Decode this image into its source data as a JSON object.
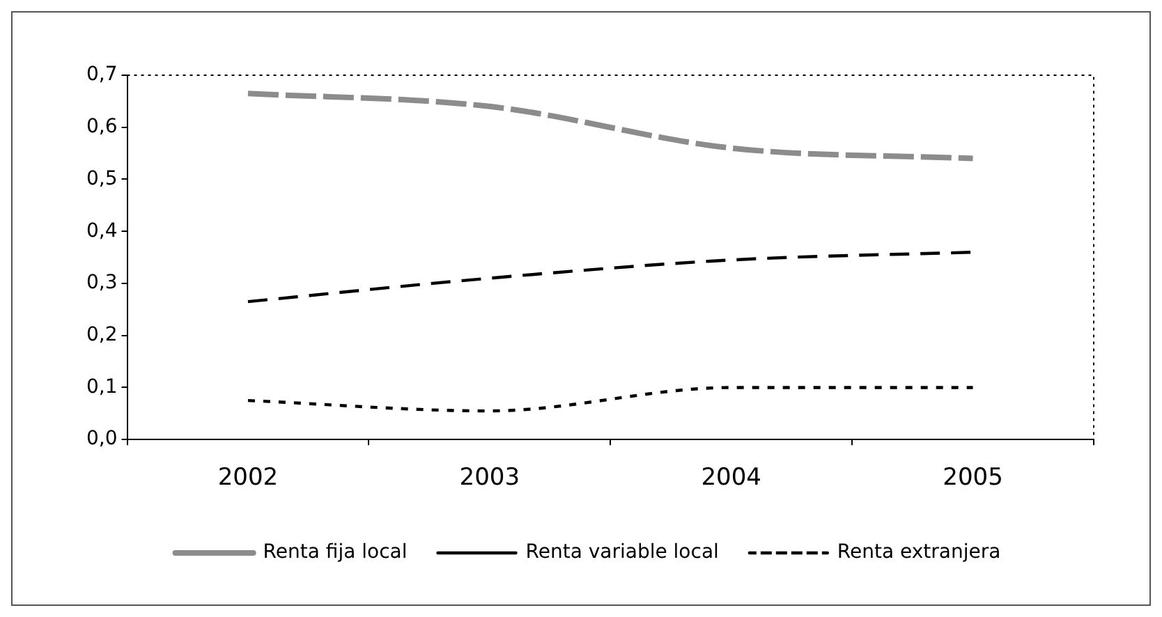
{
  "chart_data": {
    "type": "line",
    "categories": [
      "2002",
      "2003",
      "2004",
      "2005"
    ],
    "series": [
      {
        "name": "Renta fija local",
        "color": "#8c8c8c",
        "values": [
          0.665,
          0.64,
          0.56,
          0.54
        ],
        "line_style": "dashed"
      },
      {
        "name": "Renta variable local",
        "color": "#000000",
        "values": [
          0.265,
          0.31,
          0.345,
          0.36
        ],
        "line_style": "dashed"
      },
      {
        "name": "Renta extranjera",
        "color": "#000000",
        "values": [
          0.075,
          0.055,
          0.1,
          0.1
        ],
        "line_style": "dotted"
      }
    ],
    "ylim": [
      0,
      0.7
    ],
    "yticks": [
      {
        "value": 0,
        "label": "0,0"
      },
      {
        "value": 0.1,
        "label": "0,1"
      },
      {
        "value": 0.2,
        "label": "0,2"
      },
      {
        "value": 0.3,
        "label": "0,3"
      },
      {
        "value": 0.4,
        "label": "0,4"
      },
      {
        "value": 0.5,
        "label": "0,5"
      },
      {
        "value": 0.6,
        "label": "0,6"
      },
      {
        "value": 0.7,
        "label": "0,7"
      }
    ],
    "grid": false,
    "legend": "bottom",
    "marker": "none"
  }
}
